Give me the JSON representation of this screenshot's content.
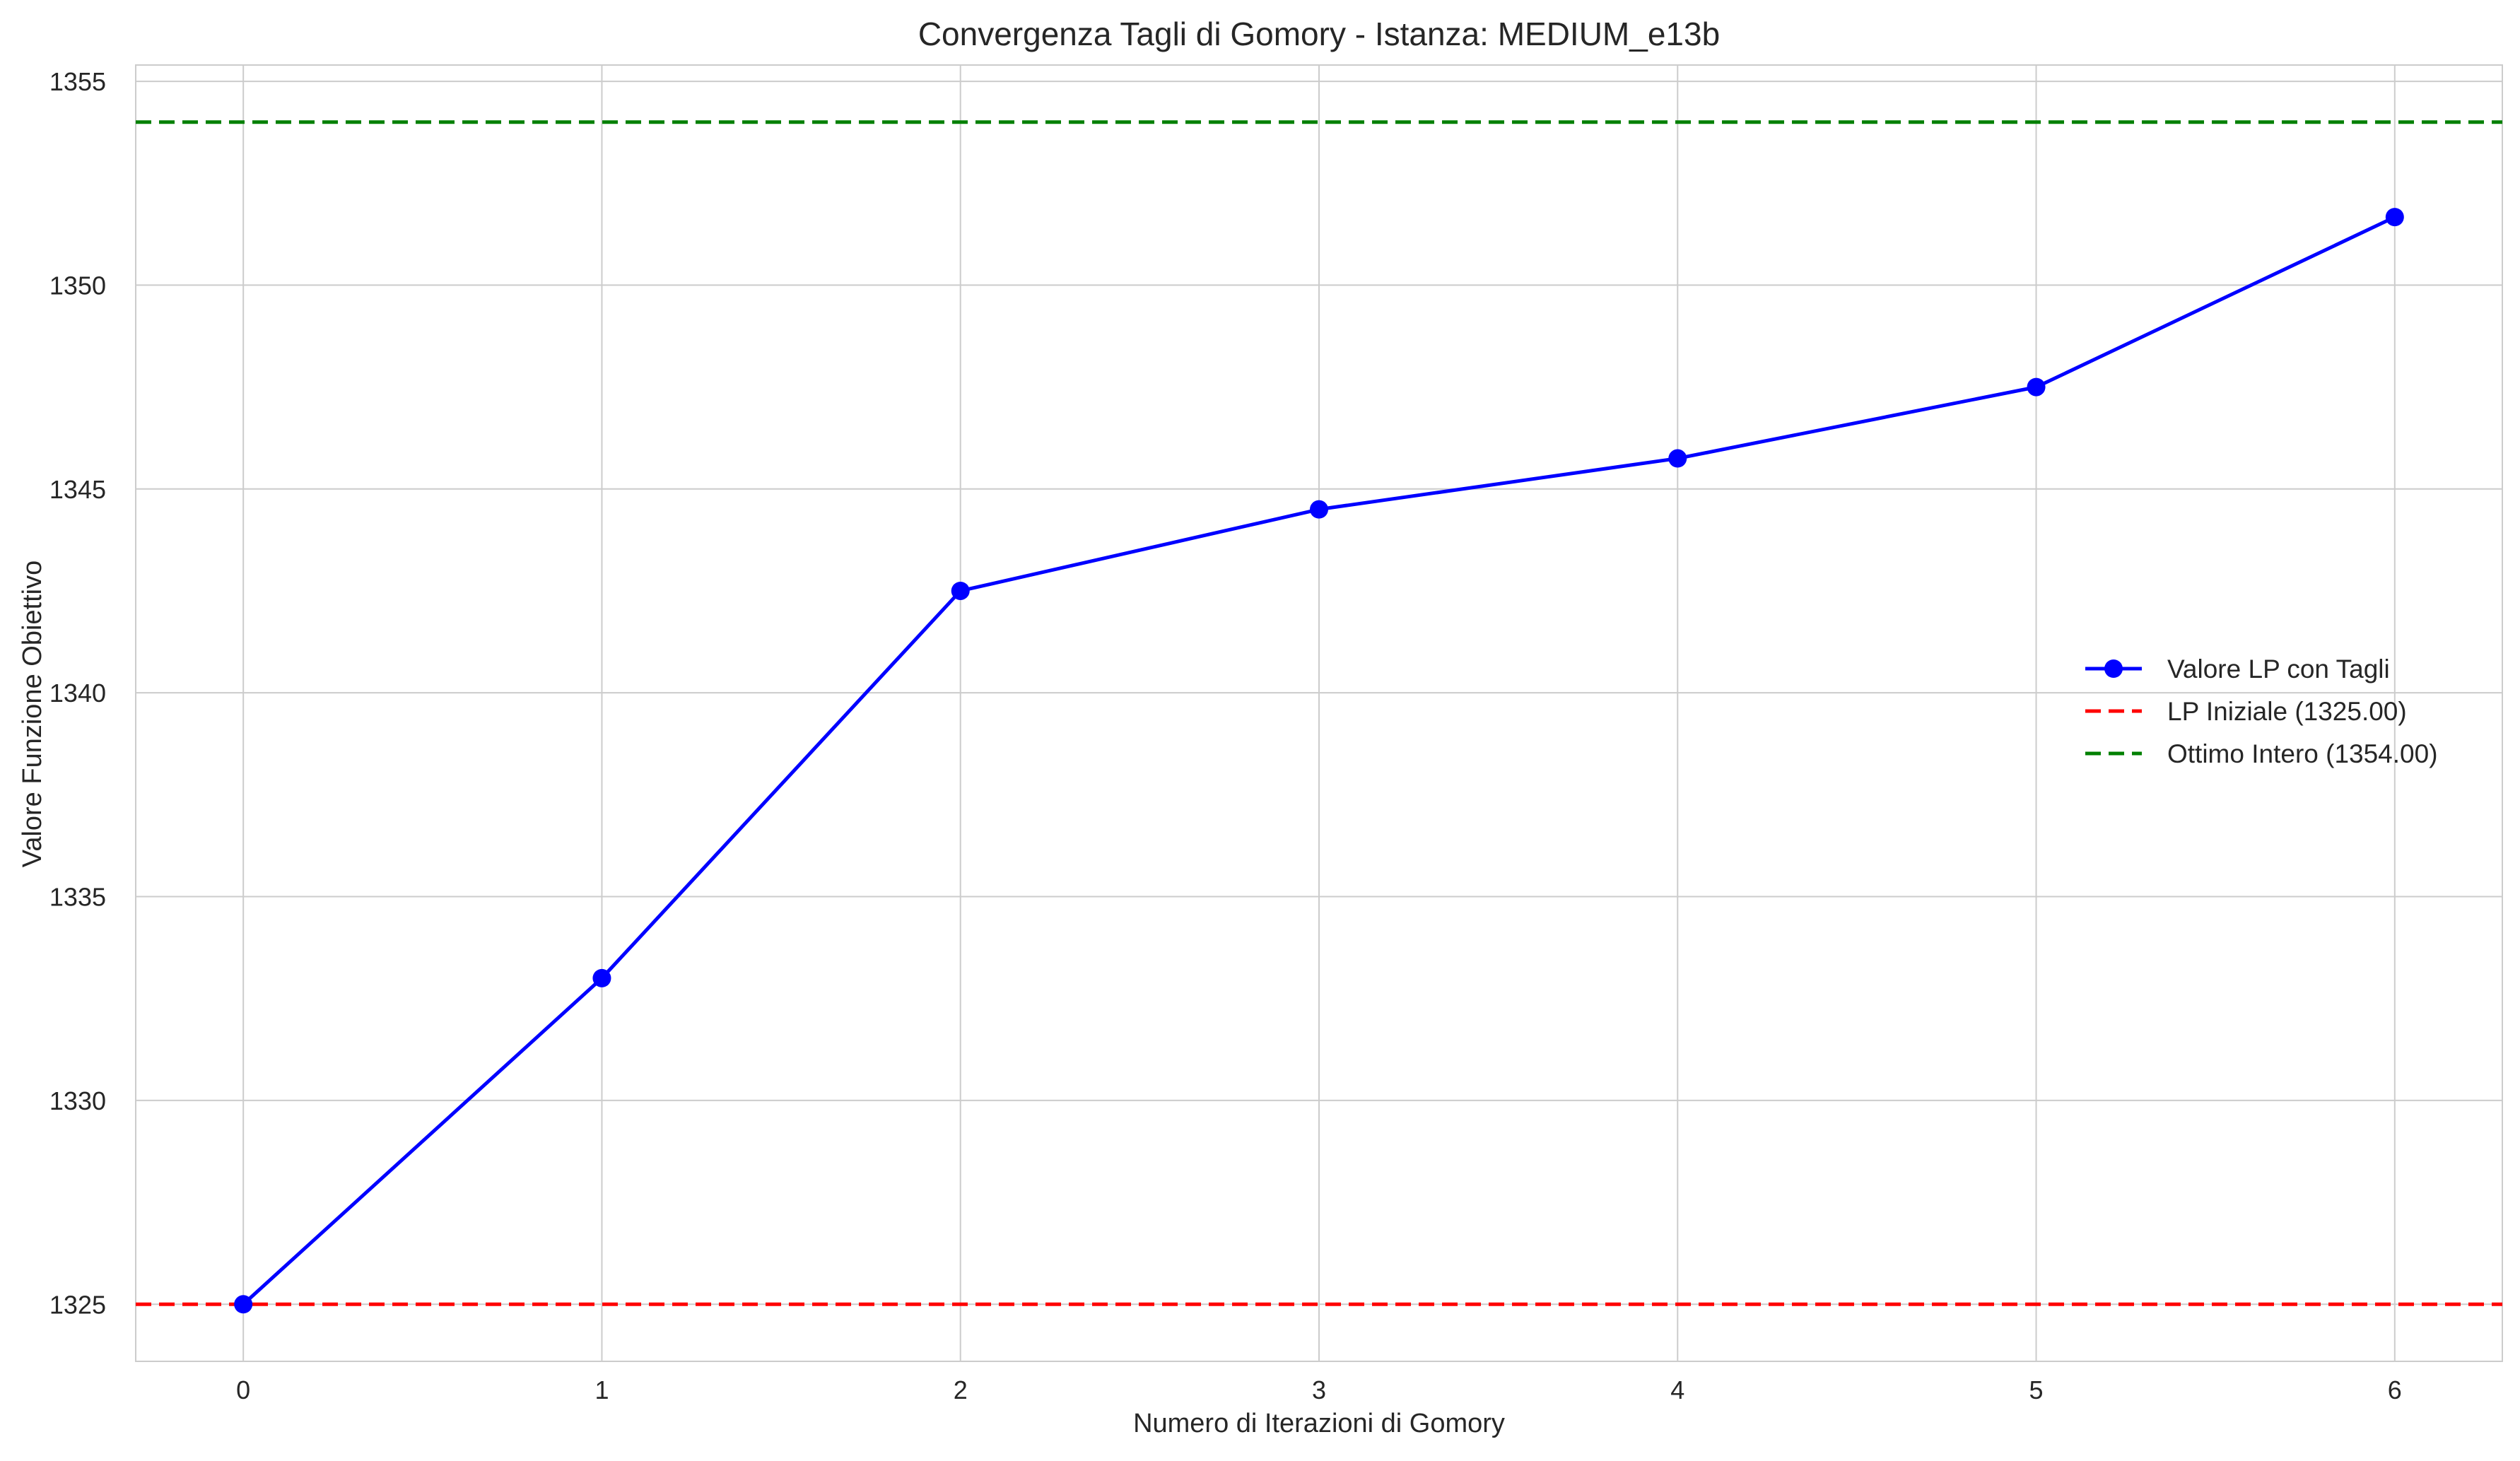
{
  "chart_data": {
    "type": "line",
    "title": "Convergenza Tagli di Gomory - Istanza: MEDIUM_e13b",
    "xlabel": "Numero di Iterazioni di Gomory",
    "ylabel": "Valore Funzione Obiettivo",
    "x": [
      0,
      1,
      2,
      3,
      4,
      5,
      6
    ],
    "x_tick_labels": [
      "0",
      "1",
      "2",
      "3",
      "4",
      "5",
      "6"
    ],
    "y_tick_values": [
      1325,
      1330,
      1335,
      1340,
      1345,
      1350,
      1355
    ],
    "y_tick_labels": [
      "1325",
      "1330",
      "1335",
      "1340",
      "1345",
      "1350",
      "1355"
    ],
    "xlim": [
      -0.3,
      6.3
    ],
    "ylim": [
      1323.6,
      1355.4
    ],
    "grid": true,
    "legend_position": "center-right",
    "series": [
      {
        "name": "Valore LP con Tagli",
        "kind": "line-markers",
        "color": "#0000ff",
        "x": [
          0,
          1,
          2,
          3,
          4,
          5,
          6
        ],
        "values": [
          1325.0,
          1333.0,
          1342.5,
          1344.5,
          1345.75,
          1347.5,
          1351.67
        ]
      },
      {
        "name": "LP Iniziale (1325.00)",
        "kind": "hline-dashed",
        "color": "#ff0000",
        "value": 1325.0
      },
      {
        "name": "Ottimo Intero (1354.00)",
        "kind": "hline-dashed",
        "color": "#008000",
        "value": 1354.0
      }
    ]
  }
}
